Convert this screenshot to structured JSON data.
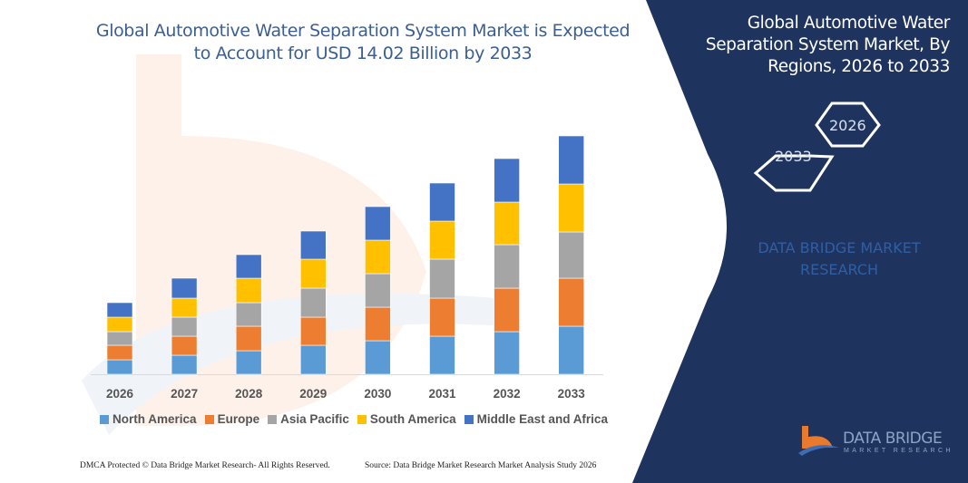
{
  "header": {
    "title": "Global Automotive Water Separation System Market is Expected to Account for USD 14.02 Billion by 2033"
  },
  "side_panel": {
    "title": "Global Automotive Water Separation System Market, By Regions, 2026 to 2033",
    "hex_start": "2026",
    "hex_end": "2033",
    "brand_text": "DATA BRIDGE MARKET RESEARCH",
    "logo_text": "DATA BRIDGE",
    "logo_subtext": "MARKET RESEARCH",
    "background_color": "#1f335f"
  },
  "footer": {
    "left": "DMCA Protected © Data Bridge Market Research-  All Rights Reserved.",
    "right": "Source: Data Bridge Market Research  Market Analysis Study 2026"
  },
  "chart_data": {
    "type": "bar",
    "stacked": true,
    "title": "Global Automotive Water Separation System Market is Expected to Account for USD 14.02 Billion by 2033",
    "categories": [
      "2026",
      "2027",
      "2028",
      "2029",
      "2030",
      "2031",
      "2032",
      "2033"
    ],
    "y_axis_shown": false,
    "grid": false,
    "legend_position": "bottom",
    "series": [
      {
        "name": "North America",
        "color": "#5b9bd5",
        "values": [
          16,
          21,
          26,
          32,
          37,
          42,
          47,
          53
        ]
      },
      {
        "name": "Europe",
        "color": "#ed7d31",
        "values": [
          16,
          21,
          27,
          31,
          37,
          42,
          48,
          53
        ]
      },
      {
        "name": "Asia Pacific",
        "color": "#a5a5a5",
        "values": [
          15,
          21,
          26,
          32,
          37,
          43,
          48,
          51
        ]
      },
      {
        "name": "South America",
        "color": "#ffc000",
        "values": [
          16,
          21,
          27,
          32,
          37,
          42,
          47,
          53
        ]
      },
      {
        "name": "Middle East and Africa",
        "color": "#4472c4",
        "values": [
          16,
          22,
          26,
          31,
          37,
          42,
          48,
          53
        ]
      }
    ]
  }
}
